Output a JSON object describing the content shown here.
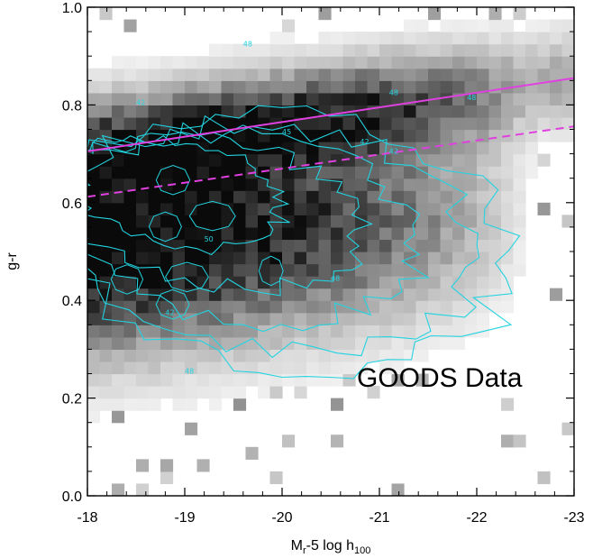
{
  "chart_data": {
    "type": "heatmap",
    "title": "",
    "xlabel": {
      "main": "M",
      "sub": "r",
      "rest": "-5 log h",
      "sub2": "100"
    },
    "ylabel": "g-r",
    "xlim": [
      -18,
      -23
    ],
    "ylim": [
      0.0,
      1.0
    ],
    "x_ticks": [
      -18,
      -19,
      -20,
      -21,
      -22,
      -23
    ],
    "y_ticks": [
      0.0,
      0.2,
      0.4,
      0.6,
      0.8,
      1.0
    ],
    "x_tick_labels": [
      "-18",
      "-19",
      "-20",
      "-21",
      "-22",
      "-23"
    ],
    "y_tick_labels": [
      "0.0",
      "0.2",
      "0.4",
      "0.6",
      "0.8",
      "1.0"
    ],
    "grid": false,
    "annotation": "GOODS Data",
    "contour_labels": [
      "42",
      "42",
      "42",
      "42",
      "48",
      "48",
      "48",
      "48",
      "50",
      "45",
      "48"
    ],
    "series": [
      {
        "type": "line",
        "style": "solid",
        "color": "#e040e0",
        "x": [
          -18.0,
          -23.0
        ],
        "y": [
          0.705,
          0.855
        ]
      },
      {
        "type": "line",
        "style": "dashed",
        "color": "#e040e0",
        "x": [
          -18.0,
          -23.0
        ],
        "y": [
          0.612,
          0.756
        ]
      }
    ],
    "colors": {
      "contour": "#22d3e0",
      "fit": "#e040e0"
    }
  }
}
